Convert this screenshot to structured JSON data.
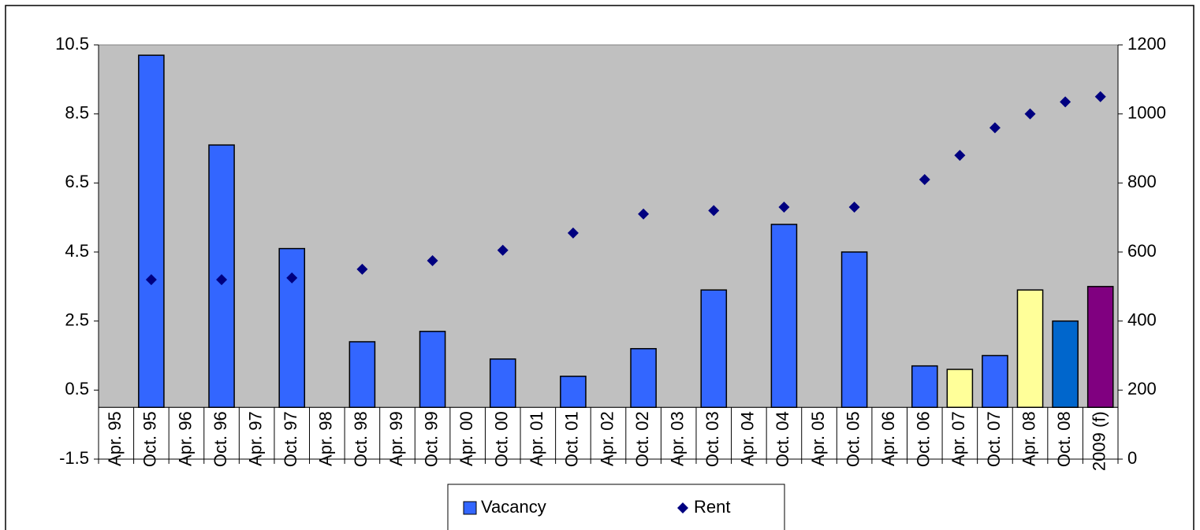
{
  "chart_data": {
    "type": "bar",
    "categories": [
      "Apr. 95",
      "Oct. 95",
      "Apr. 96",
      "Oct. 96",
      "Apr. 97",
      "Oct. 97",
      "Apr. 98",
      "Oct. 98",
      "Apr. 99",
      "Oct. 99",
      "Apr. 00",
      "Oct. 00",
      "Apr. 01",
      "Oct. 01",
      "Apr. 02",
      "Oct. 02",
      "Apr. 03",
      "Oct. 03",
      "Apr. 04",
      "Oct. 04",
      "Apr. 05",
      "Oct. 05",
      "Apr. 06",
      "Oct. 06",
      "Apr. 07",
      "Oct. 07",
      "Apr. 08",
      "Oct. 08",
      "2009 (f)"
    ],
    "series": [
      {
        "name": "Vacancy",
        "type": "bar",
        "color": "#3366ff",
        "values": [
          null,
          10.2,
          null,
          7.6,
          null,
          4.6,
          null,
          1.9,
          null,
          2.2,
          null,
          1.4,
          null,
          0.9,
          null,
          1.7,
          null,
          3.4,
          null,
          5.3,
          null,
          4.5,
          null,
          1.2,
          1.1,
          1.5,
          3.4,
          2.5,
          3.5
        ],
        "colors": [
          "#3366ff",
          "#3366ff",
          "#3366ff",
          "#3366ff",
          "#3366ff",
          "#3366ff",
          "#3366ff",
          "#3366ff",
          "#3366ff",
          "#3366ff",
          "#3366ff",
          "#3366ff",
          "#3366ff",
          "#3366ff",
          "#3366ff",
          "#3366ff",
          "#3366ff",
          "#3366ff",
          "#3366ff",
          "#3366ff",
          "#3366ff",
          "#3366ff",
          "#3366ff",
          "#3366ff",
          "#ffff99",
          "#3366ff",
          "#ffff99",
          "#0066cc",
          "#800080"
        ]
      },
      {
        "name": "Rent",
        "type": "scatter",
        "axis": "y2",
        "color": "#000080",
        "values": [
          null,
          520,
          null,
          520,
          null,
          525,
          null,
          550,
          null,
          575,
          null,
          605,
          null,
          655,
          null,
          710,
          null,
          720,
          null,
          730,
          null,
          730,
          null,
          810,
          880,
          960,
          1000,
          1035,
          1050
        ]
      }
    ],
    "ylim": [
      -1.5,
      10.5
    ],
    "yticks": [
      -1.5,
      0.5,
      2.5,
      4.5,
      6.5,
      8.5,
      10.5
    ],
    "y2lim": [
      0,
      1200
    ],
    "y2ticks": [
      0,
      200,
      400,
      600,
      800,
      1000,
      1200
    ],
    "plot_color": "#c0c0c0",
    "legend": "bottom"
  }
}
